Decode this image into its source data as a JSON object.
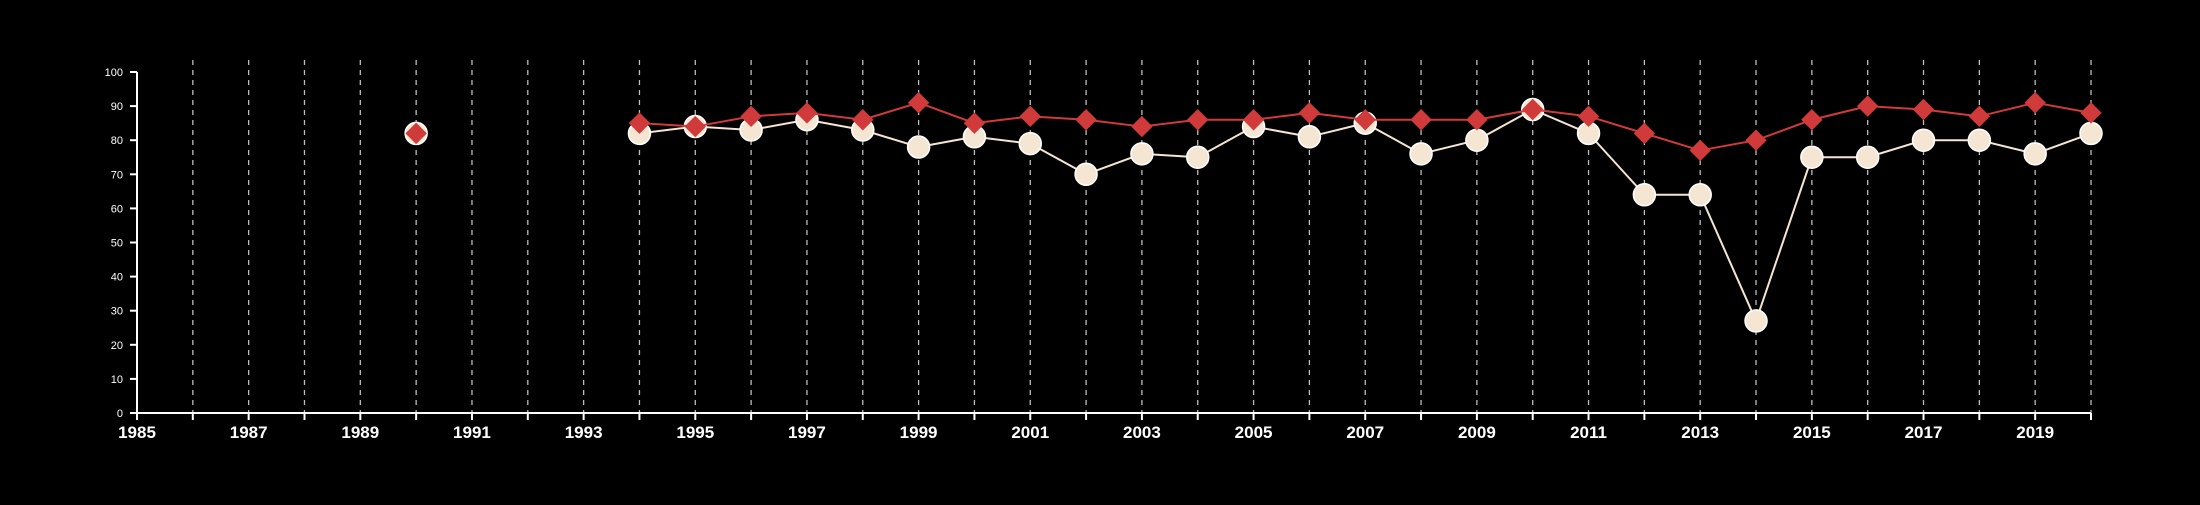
{
  "chart_data": {
    "type": "line",
    "title": "",
    "xlabel": "",
    "ylabel": "",
    "xlim": [
      1985,
      2020
    ],
    "ylim": [
      0,
      100
    ],
    "x_tick_labels": [
      "1985",
      "1987",
      "1989",
      "1991",
      "1993",
      "1995",
      "1997",
      "1999",
      "2001",
      "2003",
      "2005",
      "2007",
      "2009",
      "2011",
      "2013",
      "2015",
      "2017",
      "2019"
    ],
    "y_tick_labels": [
      "0",
      "10",
      "20",
      "30",
      "40",
      "50",
      "60",
      "70",
      "80",
      "90",
      "100"
    ],
    "vertical_gridlines": "dashed, every year from 1986 to 2020",
    "colors": {
      "background": "#000000",
      "axis": "#ffffff",
      "grid": "#bdbdbd",
      "red_series": "#d13a3a",
      "cream_series": "#f5e6d3",
      "cream_outline": "#ffffff"
    },
    "series": [
      {
        "marker": "circle",
        "color": "#f5e6d3",
        "points": [
          [
            1990,
            82
          ],
          [
            1994,
            82
          ],
          [
            1995,
            84
          ],
          [
            1996,
            83
          ],
          [
            1997,
            86
          ],
          [
            1998,
            83
          ],
          [
            1999,
            78
          ],
          [
            2000,
            81
          ],
          [
            2001,
            79
          ],
          [
            2002,
            70
          ],
          [
            2003,
            76
          ],
          [
            2004,
            75
          ],
          [
            2005,
            84
          ],
          [
            2006,
            81
          ],
          [
            2007,
            85
          ],
          [
            2008,
            76
          ],
          [
            2009,
            80
          ],
          [
            2010,
            89
          ],
          [
            2011,
            82
          ],
          [
            2012,
            64
          ],
          [
            2013,
            64
          ],
          [
            2014,
            27
          ],
          [
            2015,
            75
          ],
          [
            2016,
            75
          ],
          [
            2017,
            80
          ],
          [
            2018,
            80
          ],
          [
            2019,
            76
          ],
          [
            2020,
            82
          ]
        ]
      },
      {
        "marker": "diamond",
        "color": "#d13a3a",
        "points": [
          [
            1990,
            82
          ],
          [
            1994,
            85
          ],
          [
            1995,
            84
          ],
          [
            1996,
            87
          ],
          [
            1997,
            88
          ],
          [
            1998,
            86
          ],
          [
            1999,
            91
          ],
          [
            2000,
            85
          ],
          [
            2001,
            87
          ],
          [
            2002,
            86
          ],
          [
            2003,
            84
          ],
          [
            2004,
            86
          ],
          [
            2005,
            86
          ],
          [
            2006,
            88
          ],
          [
            2007,
            86
          ],
          [
            2008,
            86
          ],
          [
            2009,
            86
          ],
          [
            2010,
            89
          ],
          [
            2011,
            87
          ],
          [
            2012,
            82
          ],
          [
            2013,
            77
          ],
          [
            2014,
            80
          ],
          [
            2015,
            86
          ],
          [
            2016,
            90
          ],
          [
            2017,
            89
          ],
          [
            2018,
            87
          ],
          [
            2019,
            91
          ],
          [
            2020,
            88
          ]
        ]
      }
    ]
  }
}
